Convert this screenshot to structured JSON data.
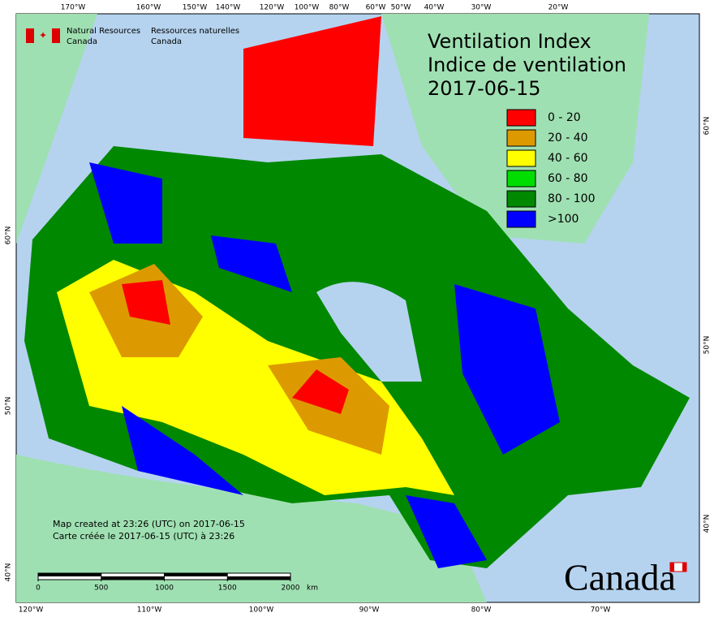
{
  "header": {
    "logo_en": [
      "Natural Resources",
      "Canada"
    ],
    "logo_fr": [
      "Ressources naturelles",
      "Canada"
    ]
  },
  "title": [
    "Ventilation Index",
    "Indice de ventilation",
    "2017-06-15"
  ],
  "legend": [
    {
      "label": "0 - 20",
      "color": "#ff0000"
    },
    {
      "label": "20 - 40",
      "color": "#dd9a00"
    },
    {
      "label": "40 - 60",
      "color": "#ffff00"
    },
    {
      "label": "60 - 80",
      "color": "#00dd00"
    },
    {
      "label": "80 - 100",
      "color": "#008800"
    },
    {
      "label": ">100",
      "color": "#0000ff"
    }
  ],
  "top_labels": [
    "170°W",
    "160°W",
    "150°W",
    "140°W",
    "120°W",
    "100°W",
    "80°W",
    "60°W",
    "50°W",
    "40°W",
    "30°W",
    "20°W"
  ],
  "bottom_labels": [
    "120°W",
    "110°W",
    "100°W",
    "90°W",
    "80°W",
    "70°W"
  ],
  "left_labels": [
    "60°N",
    "50°N",
    "40°N"
  ],
  "right_labels": [
    "60°N",
    "50°N",
    "40°N"
  ],
  "notes": [
    "Map created at 23:26 (UTC) on 2017-06-15",
    "Carte créée le 2017-06-15 (UTC) à 23:26"
  ],
  "scale": {
    "ticks": [
      0,
      500,
      1000,
      1500,
      2000
    ],
    "unit": "km"
  },
  "wordmark": "Canada"
}
